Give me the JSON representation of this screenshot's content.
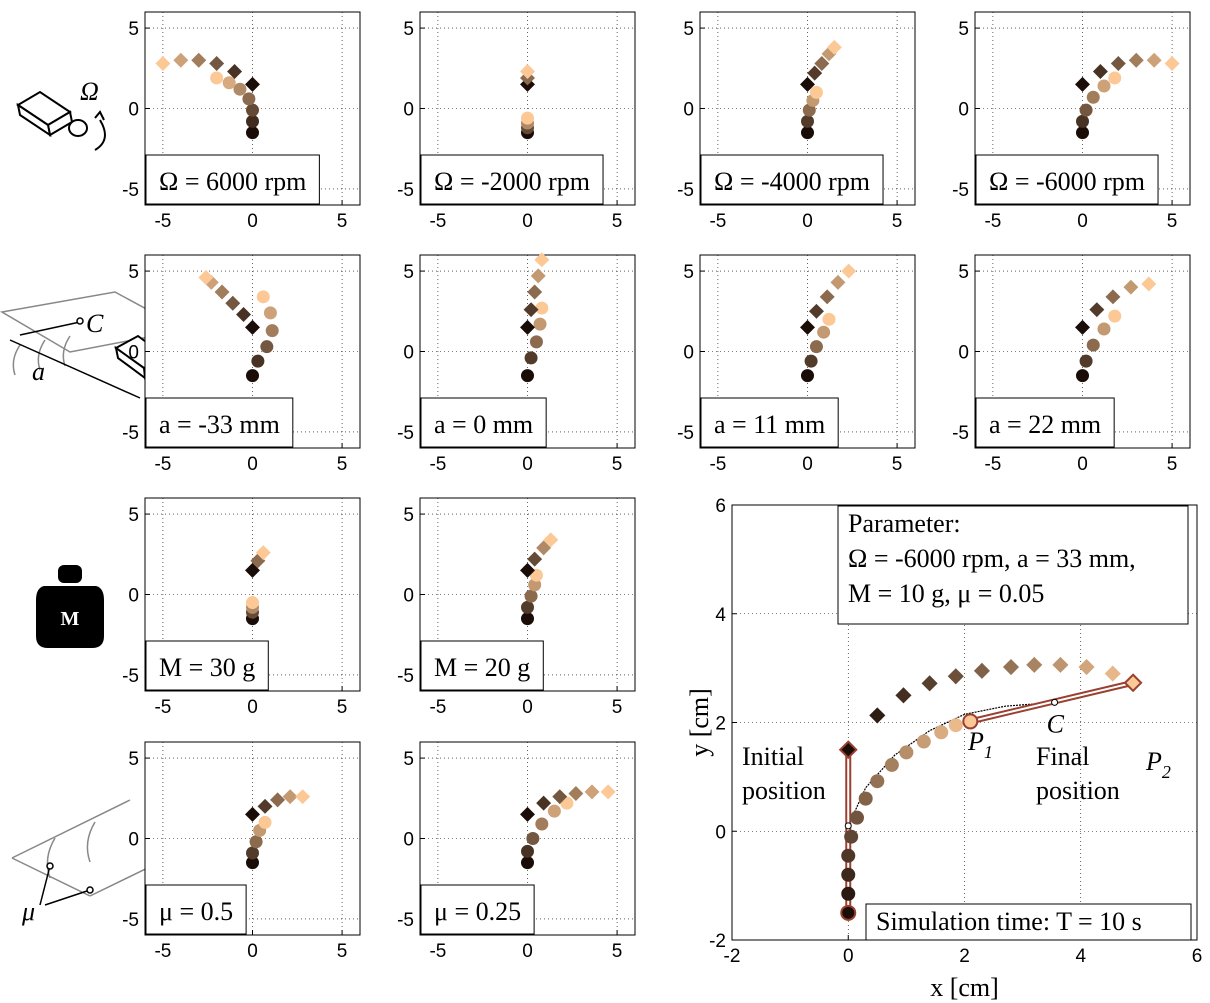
{
  "icons": {
    "omega": "Ω",
    "c": "C",
    "a": "a",
    "weight": "M",
    "mu": "μ"
  },
  "chart_data": [
    {
      "type": "scatter",
      "label": "Ω = 6000 rpm",
      "xlim": [
        -6,
        6
      ],
      "ylim": [
        -6,
        6
      ],
      "xticks": [
        -5,
        0,
        5
      ],
      "yticks": [
        -5,
        0,
        5
      ],
      "grid": true,
      "colors": [
        "#1a0c06",
        "#fbc896"
      ],
      "series": [
        {
          "marker": "circle",
          "x": [
            0,
            0,
            0,
            -0.2,
            -0.7,
            -1.3,
            -2
          ],
          "y": [
            -1.5,
            -0.8,
            -0.1,
            0.6,
            1.2,
            1.6,
            1.9
          ]
        },
        {
          "marker": "diamond",
          "x": [
            0,
            -1,
            -2,
            -3,
            -4,
            -5
          ],
          "y": [
            1.5,
            2.3,
            2.8,
            3.0,
            3.0,
            2.8
          ]
        }
      ]
    },
    {
      "type": "scatter",
      "label": "Ω = -2000 rpm",
      "xlim": [
        -6,
        6
      ],
      "ylim": [
        -6,
        6
      ],
      "xticks": [
        -5,
        0,
        5
      ],
      "yticks": [
        -5,
        0,
        5
      ],
      "grid": true,
      "colors": [
        "#1a0c06",
        "#fbc896"
      ],
      "series": [
        {
          "marker": "circle",
          "x": [
            0,
            0,
            0,
            0
          ],
          "y": [
            -1.5,
            -1.2,
            -0.9,
            -0.6
          ]
        },
        {
          "marker": "diamond",
          "x": [
            0,
            0,
            0
          ],
          "y": [
            1.5,
            1.9,
            2.3
          ]
        }
      ]
    },
    {
      "type": "scatter",
      "label": "Ω = -4000 rpm",
      "xlim": [
        -6,
        6
      ],
      "ylim": [
        -6,
        6
      ],
      "xticks": [
        -5,
        0,
        5
      ],
      "yticks": [
        -5,
        0,
        5
      ],
      "grid": true,
      "colors": [
        "#1a0c06",
        "#fbc896"
      ],
      "series": [
        {
          "marker": "circle",
          "x": [
            0,
            0,
            0.1,
            0.3,
            0.5
          ],
          "y": [
            -1.5,
            -0.8,
            -0.1,
            0.5,
            1.0
          ]
        },
        {
          "marker": "diamond",
          "x": [
            0,
            0.4,
            0.8,
            1.2,
            1.5
          ],
          "y": [
            1.5,
            2.2,
            2.8,
            3.4,
            3.8
          ]
        }
      ]
    },
    {
      "type": "scatter",
      "label": "Ω = -6000 rpm",
      "xlim": [
        -6,
        6
      ],
      "ylim": [
        -6,
        6
      ],
      "xticks": [
        -5,
        0,
        5
      ],
      "yticks": [
        -5,
        0,
        5
      ],
      "grid": true,
      "colors": [
        "#1a0c06",
        "#fbc896"
      ],
      "series": [
        {
          "marker": "circle",
          "x": [
            0,
            0,
            0.2,
            0.6,
            1.2,
            1.8
          ],
          "y": [
            -1.5,
            -0.8,
            -0.1,
            0.7,
            1.4,
            1.9
          ]
        },
        {
          "marker": "diamond",
          "x": [
            0,
            1,
            2,
            3,
            4,
            5
          ],
          "y": [
            1.5,
            2.3,
            2.8,
            3.0,
            3.0,
            2.8
          ]
        }
      ]
    },
    {
      "type": "scatter",
      "label": "a = -33 mm",
      "xlim": [
        -6,
        6
      ],
      "ylim": [
        -6,
        6
      ],
      "xticks": [
        -5,
        0,
        5
      ],
      "yticks": [
        -5,
        0,
        5
      ],
      "grid": true,
      "colors": [
        "#1a0c06",
        "#fbc896"
      ],
      "series": [
        {
          "marker": "circle",
          "x": [
            0,
            0.3,
            0.8,
            1.1,
            1.0,
            0.6
          ],
          "y": [
            -1.5,
            -0.6,
            0.3,
            1.3,
            2.4,
            3.4
          ]
        },
        {
          "marker": "diamond",
          "x": [
            0,
            -0.5,
            -1.1,
            -1.7,
            -2.3,
            -2.6
          ],
          "y": [
            1.5,
            2.3,
            3.0,
            3.7,
            4.3,
            4.6
          ]
        }
      ]
    },
    {
      "type": "scatter",
      "label": "a = 0 mm",
      "xlim": [
        -6,
        6
      ],
      "ylim": [
        -6,
        6
      ],
      "xticks": [
        -5,
        0,
        5
      ],
      "yticks": [
        -5,
        0,
        5
      ],
      "grid": true,
      "colors": [
        "#1a0c06",
        "#fbc896"
      ],
      "series": [
        {
          "marker": "circle",
          "x": [
            0,
            0.2,
            0.5,
            0.7,
            0.8
          ],
          "y": [
            -1.5,
            -0.4,
            0.6,
            1.7,
            2.7
          ]
        },
        {
          "marker": "diamond",
          "x": [
            0,
            0.2,
            0.4,
            0.6,
            0.8
          ],
          "y": [
            1.5,
            2.6,
            3.7,
            4.7,
            5.7
          ]
        }
      ]
    },
    {
      "type": "scatter",
      "label": "a = 11 mm",
      "xlim": [
        -6,
        6
      ],
      "ylim": [
        -6,
        6
      ],
      "xticks": [
        -5,
        0,
        5
      ],
      "yticks": [
        -5,
        0,
        5
      ],
      "grid": true,
      "colors": [
        "#1a0c06",
        "#fbc896"
      ],
      "series": [
        {
          "marker": "circle",
          "x": [
            0,
            0.2,
            0.5,
            0.9,
            1.2
          ],
          "y": [
            -1.5,
            -0.6,
            0.3,
            1.2,
            2.0
          ]
        },
        {
          "marker": "diamond",
          "x": [
            0,
            0.5,
            1.1,
            1.7,
            2.3
          ],
          "y": [
            1.5,
            2.5,
            3.4,
            4.3,
            5.0
          ]
        }
      ]
    },
    {
      "type": "scatter",
      "label": "a = 22 mm",
      "xlim": [
        -6,
        6
      ],
      "ylim": [
        -6,
        6
      ],
      "xticks": [
        -5,
        0,
        5
      ],
      "yticks": [
        -5,
        0,
        5
      ],
      "grid": true,
      "colors": [
        "#1a0c06",
        "#fbc896"
      ],
      "series": [
        {
          "marker": "circle",
          "x": [
            0,
            0.2,
            0.6,
            1.2,
            1.8
          ],
          "y": [
            -1.5,
            -0.6,
            0.4,
            1.4,
            2.2
          ]
        },
        {
          "marker": "diamond",
          "x": [
            0,
            0.8,
            1.7,
            2.7,
            3.7
          ],
          "y": [
            1.5,
            2.6,
            3.4,
            4.0,
            4.2
          ]
        }
      ]
    },
    {
      "type": "scatter",
      "label": "M = 30 g",
      "xlim": [
        -6,
        6
      ],
      "ylim": [
        -6,
        6
      ],
      "xticks": [
        -5,
        0,
        5
      ],
      "yticks": [
        -5,
        0,
        5
      ],
      "grid": true,
      "colors": [
        "#1a0c06",
        "#fbc896"
      ],
      "series": [
        {
          "marker": "circle",
          "x": [
            0,
            0,
            0,
            0
          ],
          "y": [
            -1.5,
            -1.1,
            -0.8,
            -0.5
          ]
        },
        {
          "marker": "diamond",
          "x": [
            0,
            0.3,
            0.6
          ],
          "y": [
            1.5,
            2.1,
            2.6
          ]
        }
      ]
    },
    {
      "type": "scatter",
      "label": "M = 20 g",
      "xlim": [
        -6,
        6
      ],
      "ylim": [
        -6,
        6
      ],
      "xticks": [
        -5,
        0,
        5
      ],
      "yticks": [
        -5,
        0,
        5
      ],
      "grid": true,
      "colors": [
        "#1a0c06",
        "#fbc896"
      ],
      "series": [
        {
          "marker": "circle",
          "x": [
            0,
            0,
            0.2,
            0.4,
            0.5
          ],
          "y": [
            -1.5,
            -0.8,
            -0.1,
            0.6,
            1.2
          ]
        },
        {
          "marker": "diamond",
          "x": [
            0,
            0.4,
            0.9,
            1.3
          ],
          "y": [
            1.5,
            2.2,
            2.9,
            3.4
          ]
        }
      ]
    },
    {
      "type": "scatter",
      "label": "μ = 0.5",
      "xlim": [
        -6,
        6
      ],
      "ylim": [
        -6,
        6
      ],
      "xticks": [
        -5,
        0,
        5
      ],
      "yticks": [
        -5,
        0,
        5
      ],
      "grid": true,
      "colors": [
        "#1a0c06",
        "#fbc896"
      ],
      "series": [
        {
          "marker": "circle",
          "x": [
            0,
            0,
            0.2,
            0.4,
            0.7
          ],
          "y": [
            -1.5,
            -0.9,
            -0.2,
            0.5,
            1.0
          ]
        },
        {
          "marker": "diamond",
          "x": [
            0,
            0.7,
            1.4,
            2.1,
            2.8
          ],
          "y": [
            1.5,
            2.0,
            2.4,
            2.6,
            2.6
          ]
        }
      ]
    },
    {
      "type": "scatter",
      "label": "μ = 0.25",
      "xlim": [
        -6,
        6
      ],
      "ylim": [
        -6,
        6
      ],
      "xticks": [
        -5,
        0,
        5
      ],
      "yticks": [
        -5,
        0,
        5
      ],
      "grid": true,
      "colors": [
        "#1a0c06",
        "#fbc896"
      ],
      "series": [
        {
          "marker": "circle",
          "x": [
            0,
            0,
            0.3,
            0.8,
            1.5,
            2.2
          ],
          "y": [
            -1.5,
            -0.8,
            0,
            0.9,
            1.7,
            2.2
          ]
        },
        {
          "marker": "diamond",
          "x": [
            0,
            0.9,
            1.8,
            2.7,
            3.6,
            4.5
          ],
          "y": [
            1.5,
            2.2,
            2.6,
            2.8,
            2.9,
            2.9
          ]
        }
      ]
    },
    {
      "type": "scatter",
      "xlabel": "x [cm]",
      "ylabel": "y [cm]",
      "xlim": [
        -2,
        6
      ],
      "ylim": [
        -2,
        6
      ],
      "xticks": [
        -2,
        0,
        2,
        4,
        6
      ],
      "yticks": [
        -2,
        0,
        2,
        4,
        6
      ],
      "grid": true,
      "colors": [
        "#1a0c06",
        "#fbc896"
      ],
      "series": [
        {
          "marker": "circle",
          "x": [
            0,
            0,
            0,
            0,
            0.05,
            0.15,
            0.3,
            0.5,
            0.75,
            1.0,
            1.3,
            1.6,
            1.85,
            2.1
          ],
          "y": [
            -1.5,
            -1.15,
            -0.8,
            -0.45,
            -0.1,
            0.25,
            0.6,
            0.92,
            1.22,
            1.45,
            1.65,
            1.82,
            1.95,
            2.02
          ]
        },
        {
          "marker": "diamond",
          "x": [
            0,
            0.5,
            0.95,
            1.4,
            1.85,
            2.3,
            2.8,
            3.2,
            3.65,
            4.1,
            4.55,
            4.9
          ],
          "y": [
            1.5,
            2.13,
            2.5,
            2.72,
            2.85,
            2.95,
            3.02,
            3.06,
            3.06,
            3.02,
            2.9,
            2.73
          ]
        }
      ],
      "curve": {
        "x": [
          0,
          0.3,
          0.8,
          1.4,
          2.0,
          2.7,
          3.55
        ],
        "y": [
          0.1,
          0.8,
          1.4,
          1.85,
          2.15,
          2.3,
          2.37
        ]
      },
      "annotations": {
        "parameter": [
          "Parameter:",
          "Ω = -6000 rpm, a = 33 mm,",
          "M = 10 g, μ = 0.05"
        ],
        "initial": [
          "Initial",
          "position"
        ],
        "final": [
          "Final",
          "position"
        ],
        "p1": {
          "text": "P",
          "sub": "1"
        },
        "p2": {
          "text": "P",
          "sub": "2"
        },
        "c": "C",
        "simulation": "Simulation time: T = 10 s"
      }
    }
  ]
}
